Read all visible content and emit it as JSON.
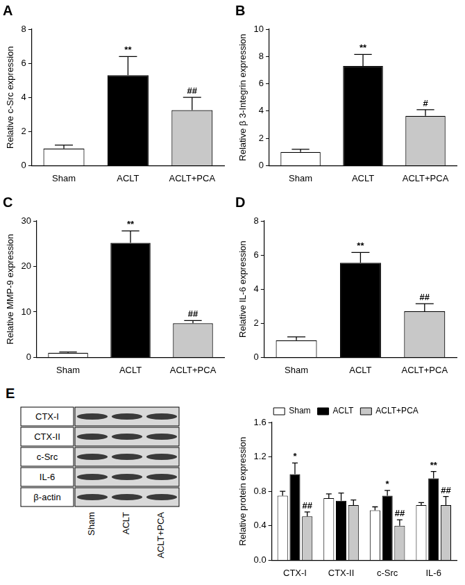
{
  "chart_data": [
    {
      "type": "bar",
      "title": "A",
      "y_label": "Relative c-Src expression",
      "categories": [
        "Sham",
        "ACLT",
        "ACLT+PCA"
      ],
      "values": [
        1.0,
        5.3,
        3.25
      ],
      "errors": [
        0.2,
        1.1,
        0.75
      ],
      "annotations": [
        null,
        "**",
        "##"
      ],
      "colors": [
        "#ffffff",
        "#000000",
        "#c8c8c8"
      ],
      "ylim": [
        0,
        8
      ],
      "yticks": [
        0,
        2,
        4,
        6,
        8
      ],
      "grid": false
    },
    {
      "type": "bar",
      "title": "B",
      "y_label": "Relative β 3-Integrin expression",
      "categories": [
        "Sham",
        "ACLT",
        "ACLT+PCA"
      ],
      "values": [
        1.0,
        7.3,
        3.65
      ],
      "errors": [
        0.2,
        0.85,
        0.45
      ],
      "annotations": [
        null,
        "**",
        "#"
      ],
      "colors": [
        "#ffffff",
        "#000000",
        "#c8c8c8"
      ],
      "ylim": [
        0,
        10
      ],
      "yticks": [
        0,
        2,
        4,
        6,
        8,
        10
      ],
      "grid": false
    },
    {
      "type": "bar",
      "title": "C",
      "y_label": "Relative MMP-9 expression",
      "categories": [
        "Sham",
        "ACLT",
        "ACLT+PCA"
      ],
      "values": [
        1.0,
        25.2,
        7.5
      ],
      "errors": [
        0.2,
        2.6,
        0.6
      ],
      "annotations": [
        null,
        "**",
        "##"
      ],
      "colors": [
        "#ffffff",
        "#000000",
        "#c8c8c8"
      ],
      "ylim": [
        0,
        30
      ],
      "yticks": [
        0,
        10,
        20,
        30
      ],
      "grid": false
    },
    {
      "type": "bar",
      "title": "D",
      "y_label": "Relative IL-6 expression",
      "categories": [
        "Sham",
        "ACLT",
        "ACLT+PCA"
      ],
      "values": [
        1.0,
        5.55,
        2.7
      ],
      "errors": [
        0.2,
        0.6,
        0.45
      ],
      "annotations": [
        null,
        "**",
        "##"
      ],
      "colors": [
        "#ffffff",
        "#000000",
        "#c8c8c8"
      ],
      "ylim": [
        0,
        8
      ],
      "yticks": [
        0,
        2,
        4,
        6,
        8
      ],
      "grid": false
    },
    {
      "type": "bar",
      "y_label": "Relative protein expression",
      "categories": [
        "CTX-I",
        "CTX-II",
        "c-Src",
        "IL-6"
      ],
      "series": [
        {
          "name": "Sham",
          "color": "#ffffff",
          "values": [
            0.75,
            0.72,
            0.58,
            0.64
          ],
          "errors": [
            0.05,
            0.05,
            0.04,
            0.03
          ],
          "annotations": [
            null,
            null,
            null,
            null
          ]
        },
        {
          "name": "ACLT",
          "color": "#000000",
          "values": [
            1.0,
            0.69,
            0.75,
            0.95
          ],
          "errors": [
            0.13,
            0.09,
            0.06,
            0.08
          ],
          "annotations": [
            "*",
            null,
            "*",
            "**"
          ]
        },
        {
          "name": "ACLT+PCA",
          "color": "#c8c8c8",
          "values": [
            0.51,
            0.64,
            0.4,
            0.64
          ],
          "errors": [
            0.05,
            0.06,
            0.07,
            0.1
          ],
          "annotations": [
            "##",
            null,
            "##",
            "##"
          ]
        }
      ],
      "ylim": [
        0,
        1.6
      ],
      "yticks": [
        {
          "value": 0,
          "label": "0.0"
        },
        0.4,
        0.8,
        1.2,
        1.6
      ],
      "grid": false,
      "legend": "top"
    }
  ],
  "blot": {
    "panel": "E",
    "rows": [
      "CTX-I",
      "CTX-II",
      "c-Src",
      "IL-6",
      "β-actin"
    ],
    "lanes": [
      "Sham",
      "ACLT",
      "ACLT+PCA"
    ]
  }
}
